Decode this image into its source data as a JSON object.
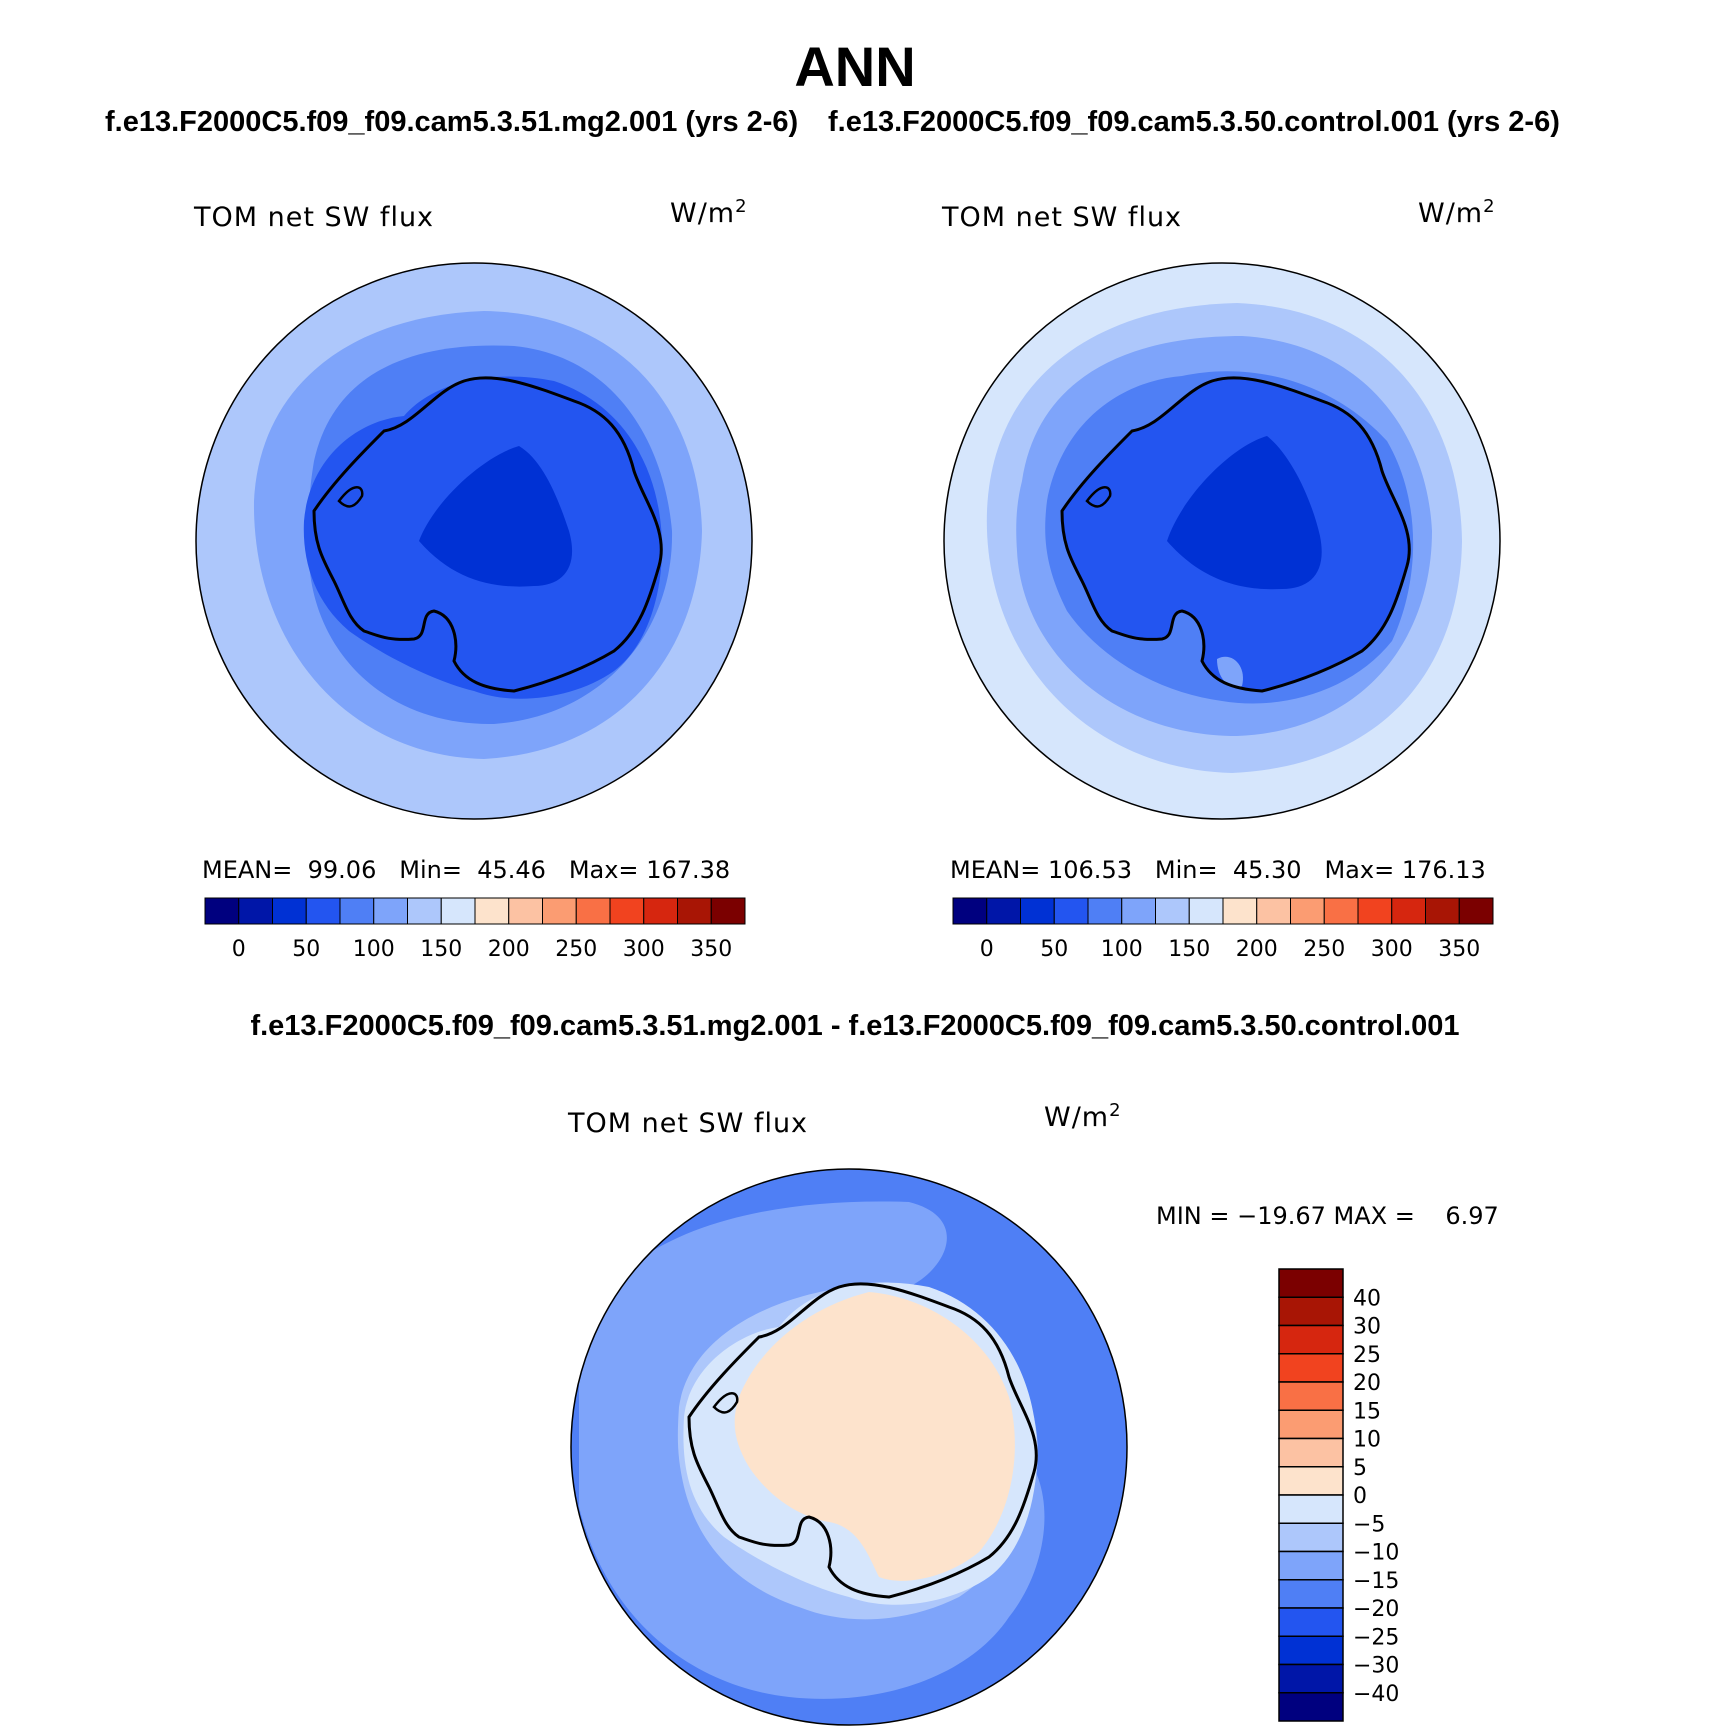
{
  "title": "ANN",
  "panels": [
    {
      "case": "f.e13.F2000C5.f09_f09.cam5.3.51.mg2.001 (yrs 2-6)",
      "var_label": "TOM net SW flux",
      "units_base": "W/m",
      "units_exp": "2",
      "stats": {
        "mean_label": "MEAN=",
        "mean": "99.06",
        "min_label": "Min=",
        "min": "45.46",
        "max_label": "Max=",
        "max": "167.38"
      }
    },
    {
      "case": "f.e13.F2000C5.f09_f09.cam5.3.50.control.001 (yrs 2-6)",
      "var_label": "TOM net SW flux",
      "units_base": "W/m",
      "units_exp": "2",
      "stats": {
        "mean_label": "MEAN=",
        "mean": "106.53",
        "min_label": "Min=",
        "min": "45.30",
        "max_label": "Max=",
        "max": "176.13"
      }
    }
  ],
  "diff": {
    "title": "f.e13.F2000C5.f09_f09.cam5.3.51.mg2.001 - f.e13.F2000C5.f09_f09.cam5.3.50.control.001",
    "var_label": "TOM net SW flux",
    "units_base": "W/m",
    "units_exp": "2",
    "minmax": "MIN = −19.67 MAX =    6.97"
  },
  "colorbar_main": {
    "colors": [
      "#00007f",
      "#0016a8",
      "#0031d4",
      "#2355f0",
      "#4f7ff5",
      "#7ea4fa",
      "#adc7fb",
      "#d6e6fc",
      "#fde3cc",
      "#fcc2a3",
      "#fb9c72",
      "#f97045",
      "#f1431f",
      "#d6260f",
      "#a81505",
      "#7b0000"
    ],
    "labels": [
      "0",
      "50",
      "100",
      "150",
      "200",
      "250",
      "300",
      "350"
    ]
  },
  "colorbar_diff": {
    "colors": [
      "#7b0000",
      "#a81505",
      "#d6260f",
      "#f1431f",
      "#f97045",
      "#fb9c72",
      "#fcc2a3",
      "#fde3cc",
      "#d6e6fc",
      "#adc7fb",
      "#7ea4fa",
      "#4f7ff5",
      "#2355f0",
      "#0031d4",
      "#0016a8",
      "#00007f"
    ],
    "labels": [
      "40",
      "30",
      "25",
      "20",
      "15",
      "10",
      "5",
      "0",
      "−5",
      "−10",
      "−15",
      "−20",
      "−25",
      "−30",
      "−40"
    ]
  },
  "map_colors": {
    "ring_110": "#adc7fb",
    "ring_130": "#d6e6fc",
    "band_100": "#7ea4fa",
    "band_75": "#4f7ff5",
    "band_50": "#2355f0",
    "core_25": "#0031d4",
    "diff_neg15": "#4f7ff5",
    "diff_neg10": "#7ea4fa",
    "diff_neg5": "#adc7fb",
    "diff_0": "#d6e6fc",
    "diff_pos5": "#fde3cc",
    "coast": "#000000"
  }
}
